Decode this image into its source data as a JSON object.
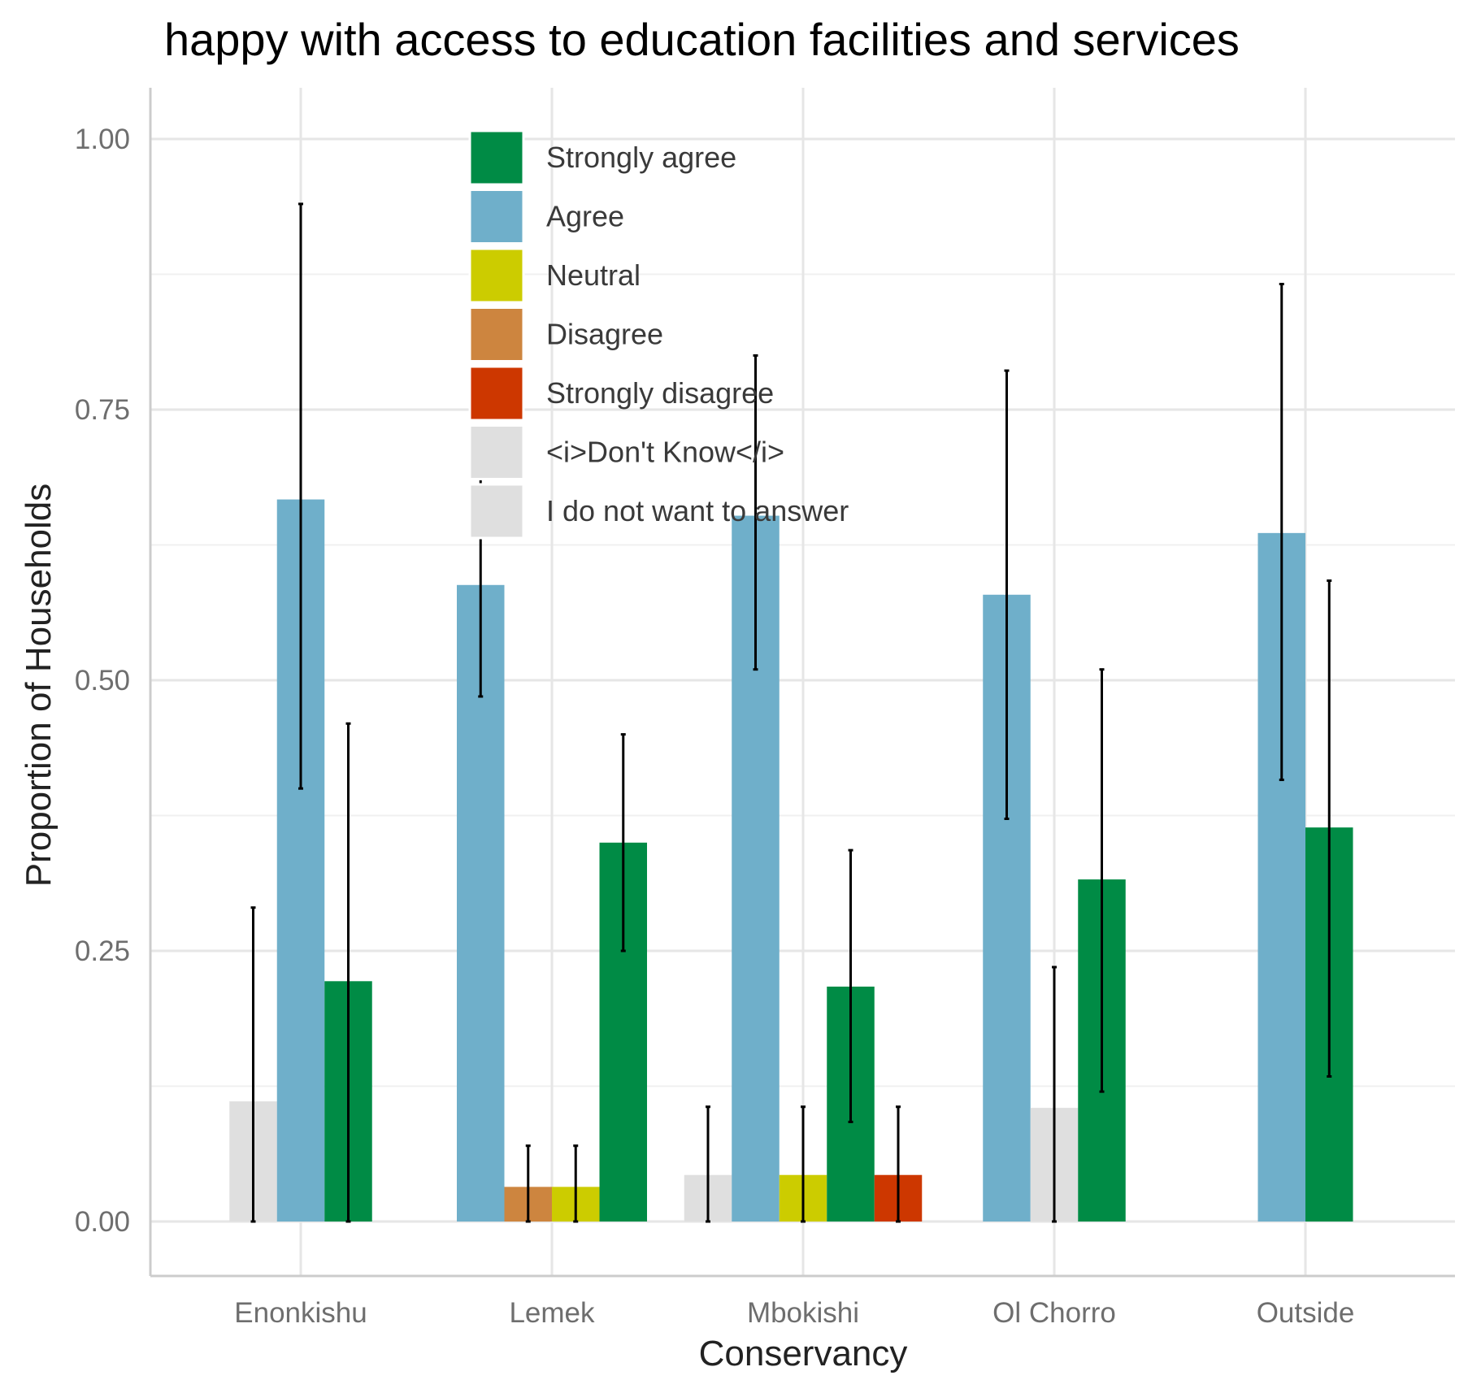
{
  "chart_data": {
    "type": "bar",
    "title": "happy with access to education facilities and services",
    "xlabel": "Conservancy",
    "ylabel": "Proportion of Households",
    "ylim": [
      -0.05,
      1.05
    ],
    "yticks": [
      "0.00",
      "0.25",
      "0.50",
      "0.75",
      "1.00"
    ],
    "ytick_values": [
      0,
      0.25,
      0.5,
      0.75,
      1.0
    ],
    "grid": true,
    "legend_position": "top-center inside",
    "categories": [
      "Enonkishu",
      "Lemek",
      "Mbokishi",
      "Ol Chorro",
      "Outside"
    ],
    "legend": [
      {
        "name": "Strongly agree",
        "color": "#008B45"
      },
      {
        "name": "Agree",
        "color": "#6FAFCA"
      },
      {
        "name": "Neutral",
        "color": "#CCCC00"
      },
      {
        "name": "Disagree",
        "color": "#CD853F"
      },
      {
        "name": "Strongly disagree",
        "color": "#CD3700"
      },
      {
        "name": "<i>Don't Know</i>",
        "color": "#DFDFDF"
      },
      {
        "name": "I do not want to answer",
        "color": "#DFDFDF"
      }
    ],
    "groups": [
      {
        "category": "Enonkishu",
        "bars": [
          {
            "response": "<i>Don't Know</i>",
            "value": 0.111,
            "lower": 0.0,
            "upper": 0.29
          },
          {
            "response": "Agree",
            "value": 0.667,
            "lower": 0.4,
            "upper": 0.94
          },
          {
            "response": "Strongly agree",
            "value": 0.222,
            "lower": 0.0,
            "upper": 0.46
          }
        ]
      },
      {
        "category": "Lemek",
        "bars": [
          {
            "response": "Agree",
            "value": 0.588,
            "lower": 0.485,
            "upper": 0.69
          },
          {
            "response": "Disagree",
            "value": 0.032,
            "lower": 0.0,
            "upper": 0.07
          },
          {
            "response": "Neutral",
            "value": 0.032,
            "lower": 0.0,
            "upper": 0.07
          },
          {
            "response": "Strongly agree",
            "value": 0.35,
            "lower": 0.25,
            "upper": 0.45
          }
        ]
      },
      {
        "category": "Mbokishi",
        "bars": [
          {
            "response": "<i>Don't Know</i>",
            "value": 0.043,
            "lower": 0.0,
            "upper": 0.106
          },
          {
            "response": "Agree",
            "value": 0.652,
            "lower": 0.51,
            "upper": 0.8
          },
          {
            "response": "Neutral",
            "value": 0.043,
            "lower": 0.0,
            "upper": 0.106
          },
          {
            "response": "Strongly agree",
            "value": 0.217,
            "lower": 0.092,
            "upper": 0.343
          },
          {
            "response": "Strongly disagree",
            "value": 0.043,
            "lower": 0.0,
            "upper": 0.106
          }
        ]
      },
      {
        "category": "Ol Chorro",
        "bars": [
          {
            "response": "Agree",
            "value": 0.579,
            "lower": 0.372,
            "upper": 0.786
          },
          {
            "response": "<i>Don't Know</i>",
            "value": 0.105,
            "lower": 0.0,
            "upper": 0.235
          },
          {
            "response": "Strongly agree",
            "value": 0.316,
            "lower": 0.12,
            "upper": 0.51
          }
        ]
      },
      {
        "category": "Outside",
        "bars": [
          {
            "response": "Agree",
            "value": 0.636,
            "lower": 0.408,
            "upper": 0.866
          },
          {
            "response": "Strongly agree",
            "value": 0.364,
            "lower": 0.134,
            "upper": 0.592
          }
        ]
      }
    ]
  }
}
